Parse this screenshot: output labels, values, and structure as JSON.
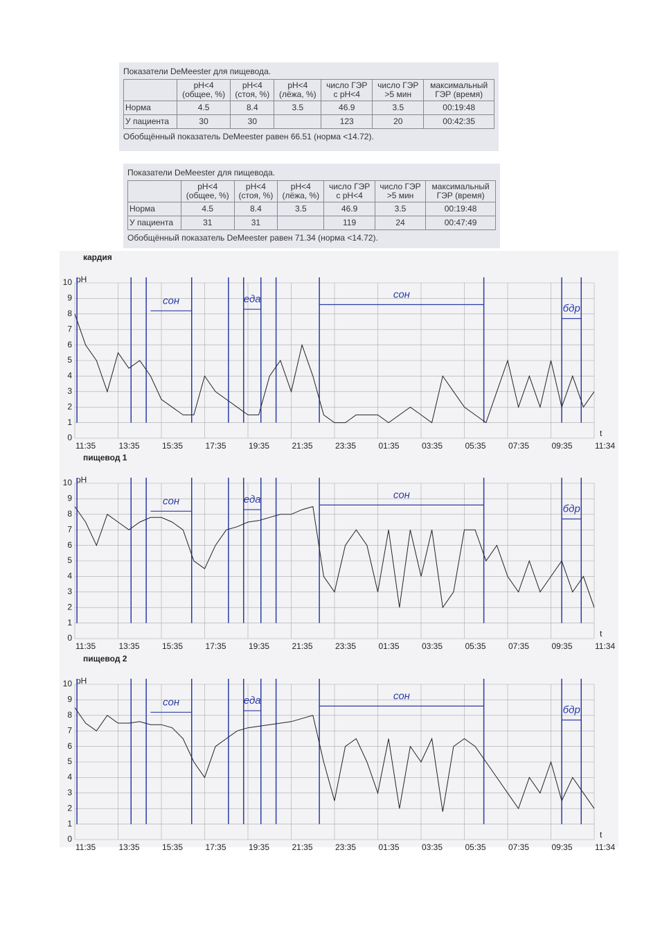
{
  "tables": [
    {
      "title": "Показатели DeMeester для пищевода.",
      "headers": [
        null,
        "pH<4\n(общее, %)",
        "pH<4\n(стоя, %)",
        "pH<4\n(лёжа, %)",
        "число ГЭР\nс pH<4",
        "число ГЭР\n>5 мин",
        "максимальный\nГЭР (время)"
      ],
      "rows": [
        [
          "Норма",
          "4.5",
          "8.4",
          "3.5",
          "46.9",
          "3.5",
          "00:19:48"
        ],
        [
          "У пациента",
          "30",
          "30",
          null,
          "123",
          "20",
          "00:42:35"
        ]
      ],
      "footer": "Обобщённый показатель DeMeester равен 66.51 (норма <14.72)."
    },
    {
      "title": "Показатели DeMeester для пищевода.",
      "headers": [
        null,
        "pH<4\n(общее, %)",
        "pH<4\n(стоя, %)",
        "pH<4\n(лёжа, %)",
        "число ГЭР\nс pH<4",
        "число ГЭР\n>5 мин",
        "максимальный\nГЭР (время)"
      ],
      "rows": [
        [
          "Норма",
          "4.5",
          "8.4",
          "3.5",
          "46.9",
          "3.5",
          "00:19:48"
        ],
        [
          "У пациента",
          "31",
          "31",
          null,
          "119",
          "24",
          "00:47:49"
        ]
      ],
      "footer": "Обобщённый показатель DeMeester равен 71.34 (норма <14.72)."
    }
  ],
  "chart_data": [
    {
      "type": "line",
      "title": "кардия",
      "y_label": "pH",
      "x_label": "t",
      "color": "#222222",
      "grid": true,
      "ylim": [
        0,
        10
      ],
      "yticks": [
        0,
        1,
        2,
        3,
        4,
        5,
        6,
        7,
        8,
        9,
        10
      ],
      "xlim": [
        0,
        24
      ],
      "xticks": [
        {
          "value": 0,
          "label": "11:35"
        },
        {
          "value": 2,
          "label": "13:35"
        },
        {
          "value": 4,
          "label": "15:35"
        },
        {
          "value": 6,
          "label": "17:35"
        },
        {
          "value": 8,
          "label": "19:35"
        },
        {
          "value": 10,
          "label": "21:35"
        },
        {
          "value": 12,
          "label": "23:35"
        },
        {
          "value": 14,
          "label": "01:35"
        },
        {
          "value": 16,
          "label": "03:35"
        },
        {
          "value": 18,
          "label": "05:35"
        },
        {
          "value": 20,
          "label": "07:35"
        },
        {
          "value": 22,
          "label": "09:35"
        },
        {
          "value": 24,
          "label": "11:34"
        }
      ],
      "x": [
        0,
        0.5,
        1,
        1.5,
        2,
        2.5,
        3,
        3.5,
        4,
        4.5,
        5,
        5.5,
        6,
        6.5,
        7,
        7.5,
        8,
        8.5,
        9,
        9.5,
        10,
        10.5,
        11,
        11.5,
        12,
        12.5,
        13,
        13.5,
        14,
        14.5,
        15,
        15.5,
        16,
        16.5,
        17,
        17.5,
        18,
        18.5,
        19,
        19.5,
        20,
        20.5,
        21,
        21.5,
        22,
        22.5,
        23,
        23.5,
        24
      ],
      "values": [
        8,
        6,
        5,
        3,
        5.5,
        4.5,
        5,
        4,
        2.5,
        2,
        1.5,
        1.5,
        4,
        3,
        2.5,
        2,
        1.5,
        1.5,
        4,
        5,
        3,
        6,
        4,
        1.5,
        1,
        1,
        1.5,
        1.5,
        1.5,
        1,
        1.5,
        2,
        1.5,
        1,
        4,
        3,
        2,
        1.5,
        1,
        3,
        5,
        2,
        4,
        2,
        5,
        2,
        4,
        2,
        3
      ],
      "event_lines": [
        0.1,
        2.6,
        3.3,
        5.4,
        7.1,
        7.8,
        8.6,
        9.3,
        11.3,
        18.9,
        22.5,
        23.4
      ],
      "annotations": [
        {
          "text": "сон",
          "x0": 3.5,
          "x1": 5.4,
          "y": 8.2
        },
        {
          "text": "еда",
          "x0": 7.8,
          "x1": 8.6,
          "y": 8.3
        },
        {
          "text": "сон",
          "x0": 11.3,
          "x1": 18.9,
          "y": 8.6
        },
        {
          "text": "бдр",
          "x0": 22.5,
          "x1": 23.4,
          "y": 7.7
        }
      ]
    },
    {
      "type": "line",
      "title": "пищевод 1",
      "y_label": "pH",
      "x_label": "t",
      "color": "#222222",
      "grid": true,
      "ylim": [
        0,
        10
      ],
      "yticks": [
        0,
        1,
        2,
        3,
        4,
        5,
        6,
        7,
        8,
        9,
        10
      ],
      "xlim": [
        0,
        24
      ],
      "xticks": [
        {
          "value": 0,
          "label": "11:35"
        },
        {
          "value": 2,
          "label": "13:35"
        },
        {
          "value": 4,
          "label": "15:35"
        },
        {
          "value": 6,
          "label": "17:35"
        },
        {
          "value": 8,
          "label": "19:35"
        },
        {
          "value": 10,
          "label": "21:35"
        },
        {
          "value": 12,
          "label": "23:35"
        },
        {
          "value": 14,
          "label": "01:35"
        },
        {
          "value": 16,
          "label": "03:35"
        },
        {
          "value": 18,
          "label": "05:35"
        },
        {
          "value": 20,
          "label": "07:35"
        },
        {
          "value": 22,
          "label": "09:35"
        },
        {
          "value": 24,
          "label": "11:34"
        }
      ],
      "x": [
        0,
        0.5,
        1,
        1.5,
        2,
        2.5,
        3,
        3.5,
        4,
        4.5,
        5,
        5.5,
        6,
        6.5,
        7,
        7.5,
        8,
        8.5,
        9,
        9.5,
        10,
        10.5,
        11,
        11.5,
        12,
        12.5,
        13,
        13.5,
        14,
        14.5,
        15,
        15.5,
        16,
        16.5,
        17,
        17.5,
        18,
        18.5,
        19,
        19.5,
        20,
        20.5,
        21,
        21.5,
        22,
        22.5,
        23,
        23.5,
        24
      ],
      "values": [
        8.5,
        7.5,
        6,
        8,
        7.5,
        7,
        7.5,
        7.8,
        7.8,
        7.5,
        7,
        5,
        4.5,
        6,
        7,
        7.2,
        7.5,
        7.6,
        7.8,
        8,
        8,
        8.3,
        8.5,
        4,
        3,
        6,
        7,
        6,
        3,
        7,
        2,
        7,
        4,
        7,
        2,
        3,
        7,
        7,
        5,
        6,
        4,
        3,
        5,
        3,
        4,
        5,
        3,
        4,
        2
      ],
      "event_lines": [
        0.1,
        2.6,
        3.3,
        5.4,
        7.1,
        7.8,
        8.6,
        9.3,
        11.3,
        18.9,
        22.5,
        23.4
      ],
      "annotations": [
        {
          "text": "сон",
          "x0": 3.5,
          "x1": 5.4,
          "y": 8.2
        },
        {
          "text": "еда",
          "x0": 7.8,
          "x1": 8.6,
          "y": 8.3
        },
        {
          "text": "сон",
          "x0": 11.3,
          "x1": 18.9,
          "y": 8.6
        },
        {
          "text": "бдр",
          "x0": 22.5,
          "x1": 23.4,
          "y": 7.7
        }
      ]
    },
    {
      "type": "line",
      "title": "пищевод 2",
      "y_label": "pH",
      "x_label": "t",
      "color": "#222222",
      "grid": true,
      "ylim": [
        0,
        10
      ],
      "yticks": [
        0,
        1,
        2,
        3,
        4,
        5,
        6,
        7,
        8,
        9,
        10
      ],
      "xlim": [
        0,
        24
      ],
      "xticks": [
        {
          "value": 0,
          "label": "11:35"
        },
        {
          "value": 2,
          "label": "13:35"
        },
        {
          "value": 4,
          "label": "15:35"
        },
        {
          "value": 6,
          "label": "17:35"
        },
        {
          "value": 8,
          "label": "19:35"
        },
        {
          "value": 10,
          "label": "21:35"
        },
        {
          "value": 12,
          "label": "23:35"
        },
        {
          "value": 14,
          "label": "01:35"
        },
        {
          "value": 16,
          "label": "03:35"
        },
        {
          "value": 18,
          "label": "05:35"
        },
        {
          "value": 20,
          "label": "07:35"
        },
        {
          "value": 22,
          "label": "09:35"
        },
        {
          "value": 24,
          "label": "11:34"
        }
      ],
      "x": [
        0,
        0.5,
        1,
        1.5,
        2,
        2.5,
        3,
        3.5,
        4,
        4.5,
        5,
        5.5,
        6,
        6.5,
        7,
        7.5,
        8,
        8.5,
        9,
        9.5,
        10,
        10.5,
        11,
        11.5,
        12,
        12.5,
        13,
        13.5,
        14,
        14.5,
        15,
        15.5,
        16,
        16.5,
        17,
        17.5,
        18,
        18.5,
        19,
        19.5,
        20,
        20.5,
        21,
        21.5,
        22,
        22.5,
        23,
        23.5,
        24
      ],
      "values": [
        8.5,
        7.5,
        7,
        8,
        7.5,
        7.5,
        7.6,
        7.4,
        7.4,
        7.2,
        6.5,
        5,
        4,
        6,
        6.5,
        7,
        7.2,
        7.3,
        7.4,
        7.5,
        7.6,
        7.8,
        8,
        5,
        2.5,
        6,
        6.5,
        5,
        3,
        6.5,
        2,
        6,
        5,
        6.5,
        1.8,
        6,
        6.5,
        6,
        5,
        4,
        3,
        2,
        4,
        3,
        5,
        2.5,
        4,
        3,
        2
      ],
      "event_lines": [
        0.1,
        2.6,
        3.3,
        5.4,
        7.1,
        7.8,
        8.6,
        9.3,
        11.3,
        18.9,
        22.5,
        23.4
      ],
      "annotations": [
        {
          "text": "сон",
          "x0": 3.5,
          "x1": 5.4,
          "y": 8.2
        },
        {
          "text": "еда",
          "x0": 7.8,
          "x1": 8.6,
          "y": 8.3
        },
        {
          "text": "сон",
          "x0": 11.3,
          "x1": 18.9,
          "y": 8.6
        },
        {
          "text": "бдр",
          "x0": 22.5,
          "x1": 23.4,
          "y": 7.7
        }
      ]
    }
  ]
}
